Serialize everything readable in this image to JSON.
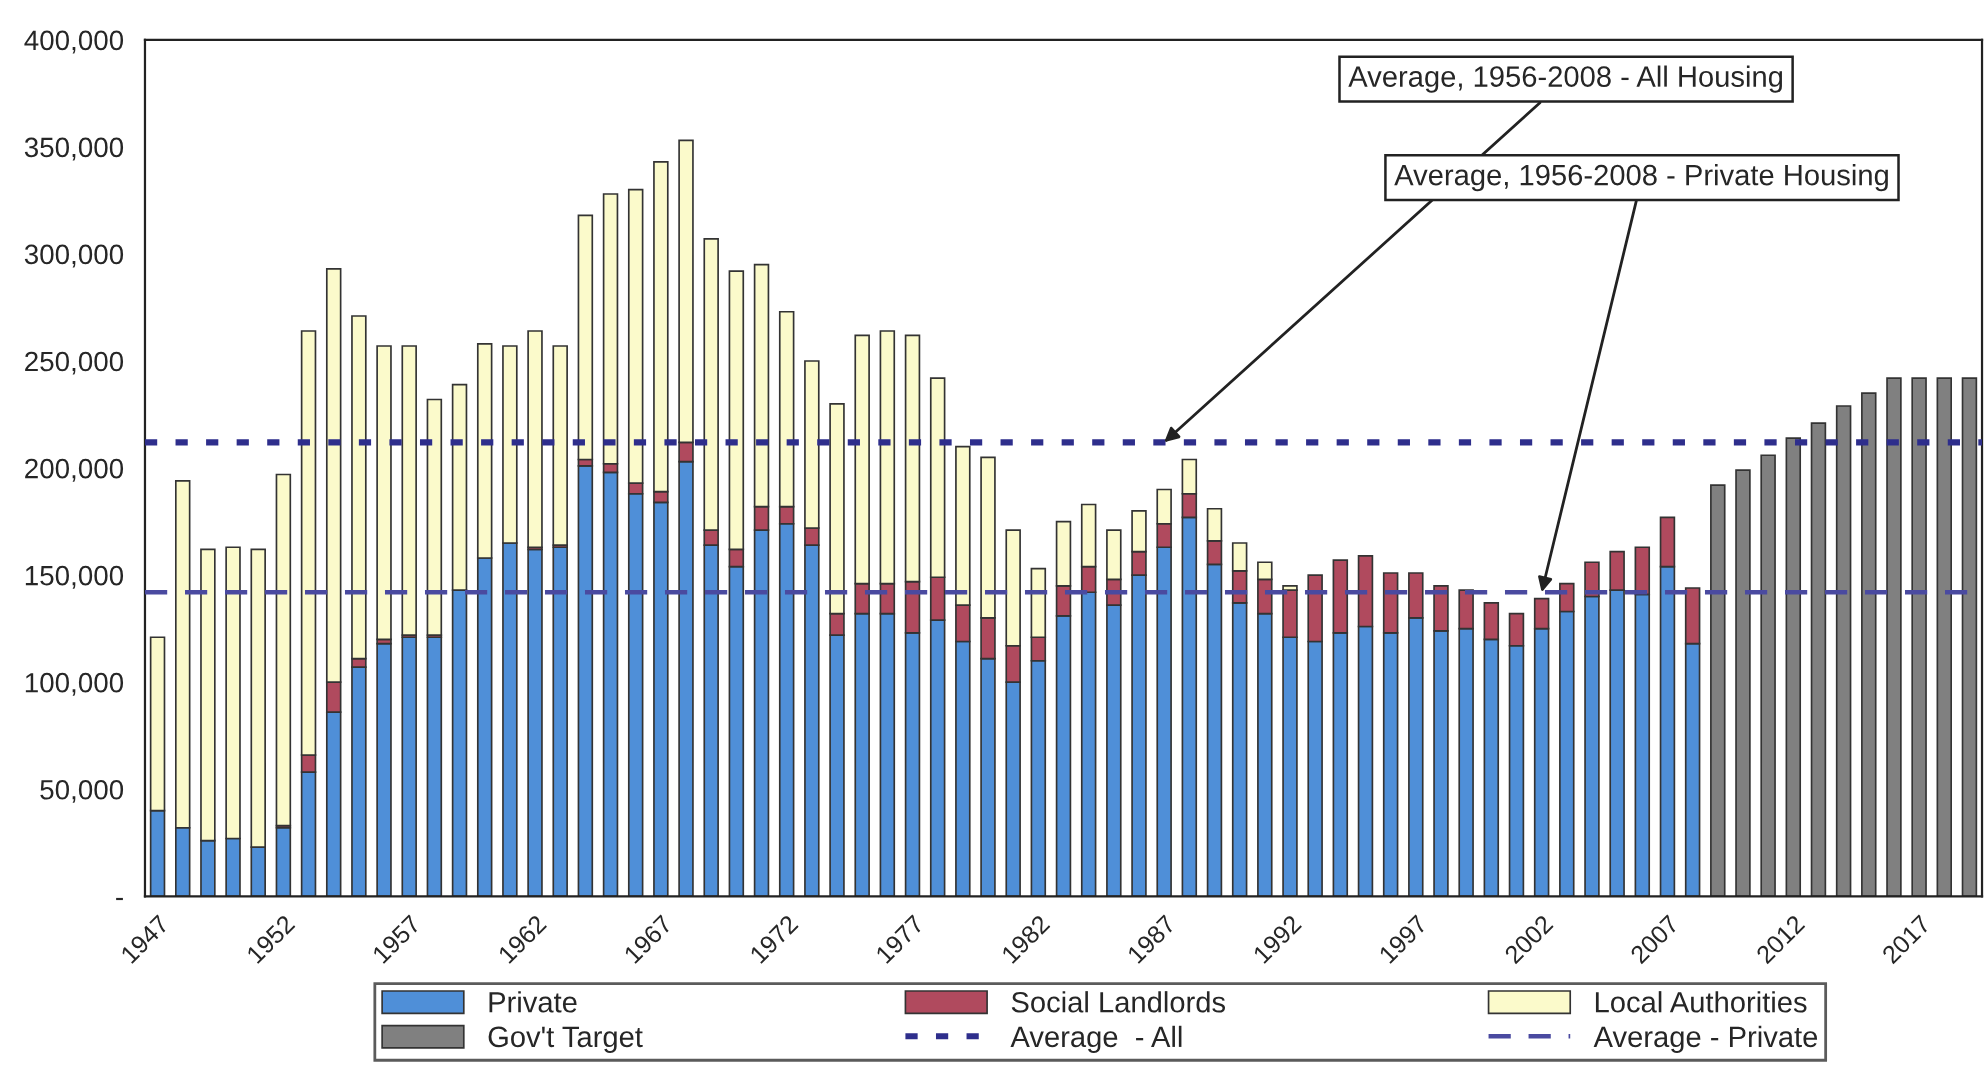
{
  "chart_data": {
    "type": "bar",
    "stacked": true,
    "categories": [
      "1947",
      null,
      null,
      null,
      null,
      "1952",
      null,
      null,
      null,
      null,
      "1957",
      null,
      null,
      null,
      null,
      "1962",
      null,
      null,
      null,
      null,
      "1967",
      null,
      null,
      null,
      null,
      "1972",
      null,
      null,
      null,
      null,
      "1977",
      null,
      null,
      null,
      null,
      "1982",
      null,
      null,
      null,
      null,
      "1987",
      null,
      null,
      null,
      null,
      "1992",
      null,
      null,
      null,
      null,
      "1997",
      null,
      null,
      null,
      null,
      "2002",
      null,
      null,
      null,
      null,
      "2007",
      null,
      null,
      null,
      null,
      "2012",
      null,
      null,
      null,
      null,
      "2017",
      null,
      null
    ],
    "series": [
      {
        "name": "Private",
        "color": "#4f8fd8",
        "values": [
          40000,
          32000,
          26000,
          27000,
          23000,
          32000,
          58000,
          86000,
          107000,
          118000,
          121000,
          121000,
          143000,
          158000,
          165000,
          162000,
          163000,
          201000,
          198000,
          188000,
          184000,
          203000,
          164000,
          154000,
          171000,
          174000,
          164000,
          122000,
          132000,
          132000,
          123000,
          129000,
          119000,
          111000,
          100000,
          110000,
          131000,
          142000,
          136000,
          150000,
          163000,
          177000,
          155000,
          137000,
          132000,
          121000,
          119000,
          123000,
          126000,
          123000,
          130000,
          124000,
          125000,
          120000,
          117000,
          125000,
          133000,
          140000,
          143000,
          141000,
          154000,
          118000,
          null,
          null,
          null,
          null,
          null,
          null,
          null,
          null,
          null,
          null,
          null
        ]
      },
      {
        "name": "Social Landlords",
        "color": "#b04a5e",
        "values": [
          null,
          null,
          null,
          null,
          null,
          1000,
          8000,
          14000,
          4000,
          2000,
          1000,
          1000,
          null,
          null,
          null,
          1000,
          1000,
          3000,
          4000,
          5000,
          5000,
          9000,
          7000,
          8000,
          11000,
          8000,
          8000,
          10000,
          14000,
          14000,
          24000,
          20000,
          17000,
          19000,
          17000,
          11000,
          14000,
          12000,
          12000,
          11000,
          11000,
          11000,
          11000,
          15000,
          16000,
          22000,
          31000,
          34000,
          33000,
          28000,
          21000,
          21000,
          18000,
          17000,
          15000,
          14000,
          13000,
          16000,
          18000,
          22000,
          23000,
          26000,
          null,
          null,
          null,
          null,
          null,
          null,
          null,
          null,
          null,
          null,
          null
        ]
      },
      {
        "name": "Local Authorities",
        "color": "#fbfacb",
        "values": [
          81000,
          162000,
          136000,
          136000,
          139000,
          164000,
          198000,
          193000,
          160000,
          137000,
          135000,
          110000,
          96000,
          100000,
          92000,
          101000,
          93000,
          114000,
          126000,
          137000,
          154000,
          141000,
          136000,
          130000,
          113000,
          91000,
          78000,
          98000,
          116000,
          118000,
          115000,
          93000,
          74000,
          75000,
          54000,
          32000,
          30000,
          29000,
          23000,
          19000,
          16000,
          16000,
          15000,
          13000,
          8000,
          2000,
          null,
          null,
          null,
          null,
          null,
          null,
          null,
          null,
          null,
          null,
          null,
          null,
          null,
          null,
          null,
          null,
          null,
          null,
          null,
          null,
          null,
          null,
          null,
          null,
          null,
          null,
          null
        ]
      },
      {
        "name": "Gov't Target",
        "color": "#808080",
        "values": [
          null,
          null,
          null,
          null,
          null,
          null,
          null,
          null,
          null,
          null,
          null,
          null,
          null,
          null,
          null,
          null,
          null,
          null,
          null,
          null,
          null,
          null,
          null,
          null,
          null,
          null,
          null,
          null,
          null,
          null,
          null,
          null,
          null,
          null,
          null,
          null,
          null,
          null,
          null,
          null,
          null,
          null,
          null,
          null,
          null,
          null,
          null,
          null,
          null,
          null,
          null,
          null,
          null,
          null,
          null,
          null,
          null,
          null,
          null,
          null,
          null,
          null,
          192000,
          199000,
          206000,
          214000,
          221000,
          229000,
          235000,
          242000,
          242000,
          242000,
          242000
        ]
      }
    ],
    "ylim": [
      0,
      400000
    ],
    "yticks": [
      {
        "value": 0,
        "label": "-"
      },
      {
        "value": 50000,
        "label": "50,000"
      },
      {
        "value": 100000,
        "label": "100,000"
      },
      {
        "value": 150000,
        "label": "150,000"
      },
      {
        "value": 200000,
        "label": "200,000"
      },
      {
        "value": 250000,
        "label": "250,000"
      },
      {
        "value": 300000,
        "label": "300,000"
      },
      {
        "value": 350000,
        "label": "350,000"
      },
      {
        "value": 400000,
        "label": "400,000"
      }
    ],
    "ref_lines": [
      {
        "axis": "y",
        "value": 212000,
        "label": "Average  - All",
        "color": "#2e2e8c",
        "line_style": "dotted"
      },
      {
        "axis": "y",
        "value": 142000,
        "label": "Average - Private",
        "color": "#4a4aa0",
        "line_style": "dashed"
      }
    ],
    "annotations": [
      {
        "text": "Average, 1956-2008 - All Housing",
        "x": "1987",
        "y": 212000
      },
      {
        "text": "Average, 1956-2008 - Private Housing",
        "x": "2002",
        "y": 142000
      }
    ],
    "legend": "bottom",
    "grid": false
  }
}
